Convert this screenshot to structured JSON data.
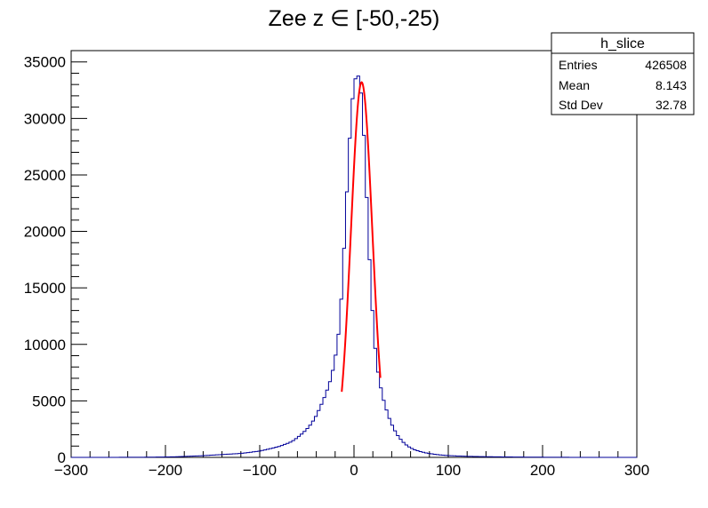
{
  "chart_data": {
    "type": "histogram",
    "title": "Zee z ∈ [-50,-25)",
    "xlabel": "",
    "ylabel": "",
    "xlim": [
      -300,
      300
    ],
    "ylim": [
      0,
      36000
    ],
    "grid": false,
    "x_ticks": [
      -300,
      -200,
      -100,
      0,
      100,
      200,
      300
    ],
    "x_tick_labels": [
      "−300",
      "−200",
      "−100",
      "0",
      "100",
      "200",
      "300"
    ],
    "y_ticks": [
      0,
      5000,
      10000,
      15000,
      20000,
      25000,
      30000,
      35000
    ],
    "y_tick_labels": [
      "0",
      "5000",
      "10000",
      "15000",
      "20000",
      "25000",
      "30000",
      "35000"
    ],
    "series": [
      {
        "color": "#000099",
        "bin_width": 3,
        "bin_start": -300,
        "x": [
          -180,
          -170,
          -160,
          -150,
          -140,
          -130,
          -120,
          -110,
          -100,
          -95,
          -90,
          -85,
          -80,
          -75,
          -70,
          -65,
          -60,
          -55,
          -50,
          -45,
          -40,
          -35,
          -30,
          -27,
          -24,
          -21,
          -18,
          -15,
          -12,
          -9,
          -6,
          -3,
          0,
          3,
          6,
          9,
          12,
          15,
          18,
          21,
          24,
          27,
          30,
          33,
          36,
          39,
          42,
          45,
          48,
          51,
          54,
          57,
          60,
          65,
          70,
          75,
          80,
          85,
          90,
          95,
          100,
          110,
          120,
          130,
          140,
          150,
          160,
          170,
          180,
          190,
          200
        ],
        "values": [
          80,
          120,
          150,
          200,
          250,
          300,
          350,
          450,
          560,
          650,
          750,
          850,
          950,
          1100,
          1250,
          1450,
          1750,
          2100,
          2500,
          3000,
          3700,
          4600,
          5600,
          6300,
          7100,
          8300,
          9800,
          12000,
          16000,
          21000,
          26000,
          30500,
          33000,
          34000,
          33500,
          31000,
          26000,
          20000,
          15000,
          11000,
          8300,
          6800,
          5500,
          4600,
          3800,
          3100,
          2600,
          2100,
          1750,
          1450,
          1200,
          1000,
          850,
          650,
          520,
          420,
          340,
          280,
          230,
          190,
          160,
          120,
          95,
          75,
          60,
          50,
          40,
          32,
          25,
          20,
          15
        ]
      }
    ],
    "fit": {
      "color": "#ff0000",
      "type": "gaussian",
      "amplitude": 33200,
      "mean": 8.1,
      "sigma": 11.3,
      "range": [
        -13,
        28
      ]
    }
  },
  "stats_box": {
    "name": "h_slice",
    "rows": [
      {
        "label": "Entries",
        "value": "426508"
      },
      {
        "label": "Mean",
        "value": "8.143"
      },
      {
        "label": "Std Dev",
        "value": "32.78"
      }
    ]
  }
}
